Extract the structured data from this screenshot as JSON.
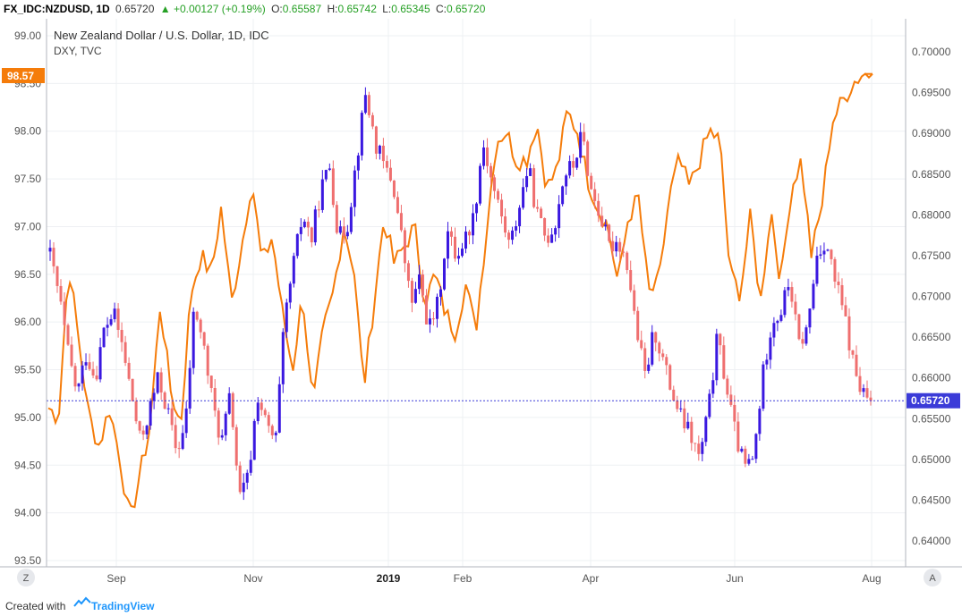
{
  "header": {
    "symbol": "FX_IDC:NZDUSD, 1D",
    "last": "0.65720",
    "change": "+0.00127 (+0.19%)",
    "o_label": "O:",
    "o_value": "0.65587",
    "h_label": "H:",
    "h_value": "0.65742",
    "l_label": "L:",
    "l_value": "0.65345",
    "c_label": "C:",
    "c_value": "0.65720"
  },
  "legend": {
    "main": "New Zealand Dollar / U.S. Dollar, 1D, IDC",
    "overlay": "DXY, TVC"
  },
  "buttons": {
    "left": "Z",
    "right": "A"
  },
  "footer": {
    "created": "Created with",
    "brand": "TradingView"
  },
  "colors": {
    "up": "#3a18e0",
    "down": "#ef6f6f",
    "dxy": "#f57c0a",
    "last_line": "#3b3bd8",
    "grid": "#eef0f3"
  },
  "chart_data": {
    "type": "candlestick-with-line-overlay",
    "x_ticks": [
      "Sep",
      "Nov",
      "2019",
      "Feb",
      "Apr",
      "Jun",
      "Aug"
    ],
    "left_axis": {
      "series": "DXY, TVC",
      "ticks": [
        "99.00",
        "98.50",
        "98.00",
        "97.50",
        "97.00",
        "96.50",
        "96.00",
        "95.50",
        "95.00",
        "94.50",
        "94.00",
        "93.50"
      ],
      "range": [
        93.45,
        99.3
      ]
    },
    "right_axis": {
      "series": "FX_IDC:NZDUSD, 1D",
      "ticks": [
        "0.70000",
        "0.69500",
        "0.69000",
        "0.68500",
        "0.68000",
        "0.67500",
        "0.67000",
        "0.66500",
        "0.66000",
        "0.65500",
        "0.65000",
        "0.64500",
        "0.64000"
      ],
      "range": [
        0.6392,
        0.7045
      ]
    },
    "last_labels": {
      "left": "98.57",
      "right": "0.65720"
    },
    "nzdusd_close_anchors": [
      0.675,
      0.67,
      0.663,
      0.658,
      0.663,
      0.66,
      0.666,
      0.668,
      0.664,
      0.658,
      0.652,
      0.656,
      0.66,
      0.656,
      0.651,
      0.654,
      0.669,
      0.664,
      0.657,
      0.652,
      0.658,
      0.645,
      0.648,
      0.658,
      0.654,
      0.652,
      0.667,
      0.674,
      0.68,
      0.677,
      0.683,
      0.686,
      0.677,
      0.679,
      0.687,
      0.695,
      0.689,
      0.686,
      0.684,
      0.677,
      0.669,
      0.672,
      0.666,
      0.669,
      0.678,
      0.675,
      0.677,
      0.68,
      0.689,
      0.684,
      0.68,
      0.676,
      0.681,
      0.686,
      0.68,
      0.677,
      0.679,
      0.685,
      0.686,
      0.69,
      0.683,
      0.68,
      0.676,
      0.677,
      0.674,
      0.666,
      0.66,
      0.666,
      0.662,
      0.658,
      0.655,
      0.653,
      0.65,
      0.656,
      0.665,
      0.659,
      0.653,
      0.649,
      0.65,
      0.66,
      0.667,
      0.668,
      0.672,
      0.664,
      0.666,
      0.675,
      0.677,
      0.672,
      0.668,
      0.662,
      0.658,
      0.6572
    ],
    "dxy_line_anchors": [
      95.1,
      95.0,
      96.6,
      95.8,
      95.0,
      94.7,
      95.1,
      94.6,
      93.9,
      94.4,
      94.9,
      96.2,
      95.3,
      94.9,
      96.3,
      96.7,
      96.5,
      97.2,
      96.2,
      96.8,
      97.5,
      96.6,
      96.9,
      96.1,
      95.5,
      96.3,
      95.1,
      95.9,
      96.3,
      97.0,
      96.6,
      95.3,
      96.2,
      97.1,
      96.6,
      96.8,
      97.0,
      96.2,
      96.5,
      96.1,
      95.9,
      96.4,
      95.9,
      96.9,
      97.9,
      98.0,
      97.7,
      97.7,
      98.1,
      97.4,
      97.6,
      98.2,
      98.0,
      97.5,
      97.2,
      97.0,
      96.4,
      97.1,
      97.3,
      96.3,
      96.4,
      97.3,
      97.7,
      97.4,
      97.7,
      98.0,
      97.9,
      96.5,
      96.3,
      97.1,
      96.2,
      97.2,
      96.4,
      97.4,
      97.7,
      96.7,
      97.2,
      98.1,
      98.3,
      98.5,
      98.6,
      98.6
    ]
  }
}
